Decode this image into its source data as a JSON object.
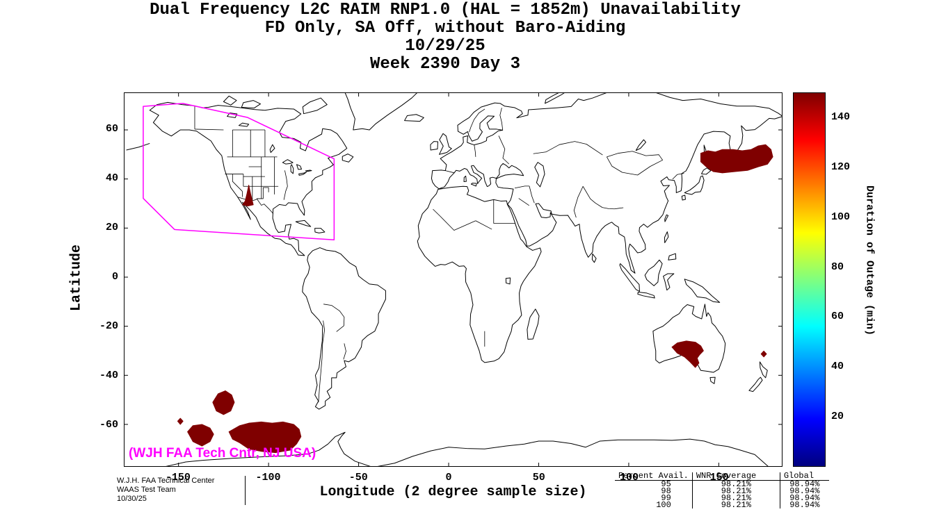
{
  "title": {
    "line1": "Dual Frequency L2C RAIM RNP1.0 (HAL = 1852m) Unavailability",
    "line2": "FD Only, SA Off, without Baro-Aiding",
    "line3": "10/29/25",
    "line4": "Week 2390 Day 3"
  },
  "axes": {
    "xlabel": "Longitude (2 degree sample size)",
    "ylabel": "Latitude",
    "xticks": [
      -150,
      -100,
      -50,
      0,
      50,
      100,
      150
    ],
    "yticks": [
      60,
      40,
      20,
      0,
      -20,
      -40,
      -60
    ]
  },
  "colorbar": {
    "label": "Duration of Outage (min)",
    "ticks": [
      20,
      40,
      60,
      80,
      100,
      120,
      140
    ],
    "min": 0,
    "max": 150,
    "gradient_colors": [
      "#00007f",
      "#0000ff",
      "#00ffff",
      "#ffff00",
      "#ff0000",
      "#7f0000"
    ],
    "gradient_stops_pct": [
      0,
      12.5,
      37.5,
      62.5,
      87.5,
      100
    ]
  },
  "map_credit": "(WJH FAA Tech Cntr, NJ USA)",
  "footer": {
    "org": "W.J.H. FAA Technical Center",
    "team": "WAAS Test Team",
    "date": "10/30/25"
  },
  "stats_table": {
    "headers": [
      "Percent Avail.",
      "WNR Coverage",
      "Global"
    ],
    "rows": [
      [
        "95",
        "98.21%",
        "98.94%"
      ],
      [
        "98",
        "98.21%",
        "98.94%"
      ],
      [
        "99",
        "98.21%",
        "98.94%"
      ],
      [
        "100",
        "98.21%",
        "98.94%"
      ]
    ]
  },
  "chart_data": {
    "type": "heatmap",
    "title": "Dual Frequency L2C RAIM RNP1.0 (HAL = 1852m) Unavailability",
    "subtitle": "FD Only, SA Off, without Baro-Aiding",
    "date": "10/29/25",
    "week": 2390,
    "day": 3,
    "xlabel": "Longitude (2 degree sample size)",
    "ylabel": "Latitude",
    "value_label": "Duration of Outage (min)",
    "value_range": [
      0,
      150
    ],
    "lon_range": [
      -180,
      185
    ],
    "lat_range": [
      -77,
      75
    ],
    "outage_color": "#7f0000",
    "boundary_color": "#ff00ff",
    "outage_regions": [
      {
        "name": "sea-of-okhotsk-nw-pacific",
        "approx_duration_min": 150,
        "polygon": [
          [
            140,
            50.5
          ],
          [
            144,
            51.5
          ],
          [
            148,
            51
          ],
          [
            152,
            52
          ],
          [
            158,
            52
          ],
          [
            163,
            51.5
          ],
          [
            168,
            52
          ],
          [
            172,
            53.5
          ],
          [
            176,
            54
          ],
          [
            179,
            52
          ],
          [
            180,
            49
          ],
          [
            177,
            46
          ],
          [
            172,
            45
          ],
          [
            166,
            43.5
          ],
          [
            159,
            43
          ],
          [
            152,
            42.5
          ],
          [
            147,
            43
          ],
          [
            143,
            45
          ],
          [
            140,
            47
          ]
        ]
      },
      {
        "name": "arizona-sonora",
        "approx_duration_min": 150,
        "polygon": [
          [
            -114.5,
            29.5
          ],
          [
            -113,
            31
          ],
          [
            -112,
            34
          ],
          [
            -111,
            37.5
          ],
          [
            -110,
            34
          ],
          [
            -109,
            31
          ],
          [
            -108.5,
            29.5
          ],
          [
            -111.5,
            29
          ]
        ]
      },
      {
        "name": "south-australia",
        "approx_duration_min": 150,
        "polygon": [
          [
            124,
            -28.5
          ],
          [
            127,
            -26.8
          ],
          [
            132,
            -26
          ],
          [
            137,
            -26.5
          ],
          [
            140,
            -28
          ],
          [
            141.5,
            -30
          ],
          [
            139.5,
            -31.5
          ],
          [
            138,
            -33
          ],
          [
            139,
            -35
          ],
          [
            137,
            -36.8
          ],
          [
            134,
            -34.5
          ],
          [
            131,
            -32.5
          ],
          [
            127,
            -31
          ]
        ]
      },
      {
        "name": "southwest-pacific-diamond",
        "approx_duration_min": 150,
        "polygon": [
          [
            173.5,
            -31.3
          ],
          [
            175,
            -30.1
          ],
          [
            176.5,
            -31.3
          ],
          [
            175,
            -32.5
          ]
        ]
      },
      {
        "name": "south-pacific-1",
        "approx_duration_min": 150,
        "polygon": [
          [
            -131,
            -51
          ],
          [
            -128,
            -47.5
          ],
          [
            -124,
            -46.3
          ],
          [
            -120.5,
            -48
          ],
          [
            -119,
            -51
          ],
          [
            -121,
            -54.5
          ],
          [
            -125,
            -56
          ],
          [
            -129,
            -54.5
          ]
        ]
      },
      {
        "name": "south-pacific-2-diamond",
        "approx_duration_min": 150,
        "polygon": [
          [
            -150.5,
            -58.7
          ],
          [
            -149,
            -57.5
          ],
          [
            -147.5,
            -58.7
          ],
          [
            -149,
            -60
          ]
        ]
      },
      {
        "name": "south-pacific-3",
        "approx_duration_min": 150,
        "polygon": [
          [
            -145,
            -63
          ],
          [
            -142,
            -60.5
          ],
          [
            -137,
            -60
          ],
          [
            -132.5,
            -61.5
          ],
          [
            -130.5,
            -64
          ],
          [
            -132.5,
            -67
          ],
          [
            -137,
            -68.8
          ],
          [
            -142,
            -67
          ]
        ]
      },
      {
        "name": "south-pacific-4",
        "approx_duration_min": 150,
        "polygon": [
          [
            -122,
            -63
          ],
          [
            -116,
            -60.5
          ],
          [
            -111,
            -59.5
          ],
          [
            -104,
            -59
          ],
          [
            -98,
            -59.5
          ],
          [
            -92,
            -59
          ],
          [
            -86,
            -60
          ],
          [
            -83,
            -62
          ],
          [
            -82,
            -65
          ],
          [
            -84.5,
            -68
          ],
          [
            -88,
            -70.5
          ],
          [
            -96,
            -71.5
          ],
          [
            -104,
            -71
          ],
          [
            -111,
            -70
          ],
          [
            -116,
            -67.5
          ],
          [
            -120,
            -66
          ]
        ]
      }
    ],
    "waas_boundary": [
      [
        -169.6,
        69.6
      ],
      [
        -147.6,
        70.8
      ],
      [
        -111.8,
        65.1
      ],
      [
        -63.6,
        48.2
      ],
      [
        -63.6,
        15.2
      ],
      [
        -152.2,
        19.4
      ],
      [
        -169.6,
        32.1
      ]
    ]
  }
}
